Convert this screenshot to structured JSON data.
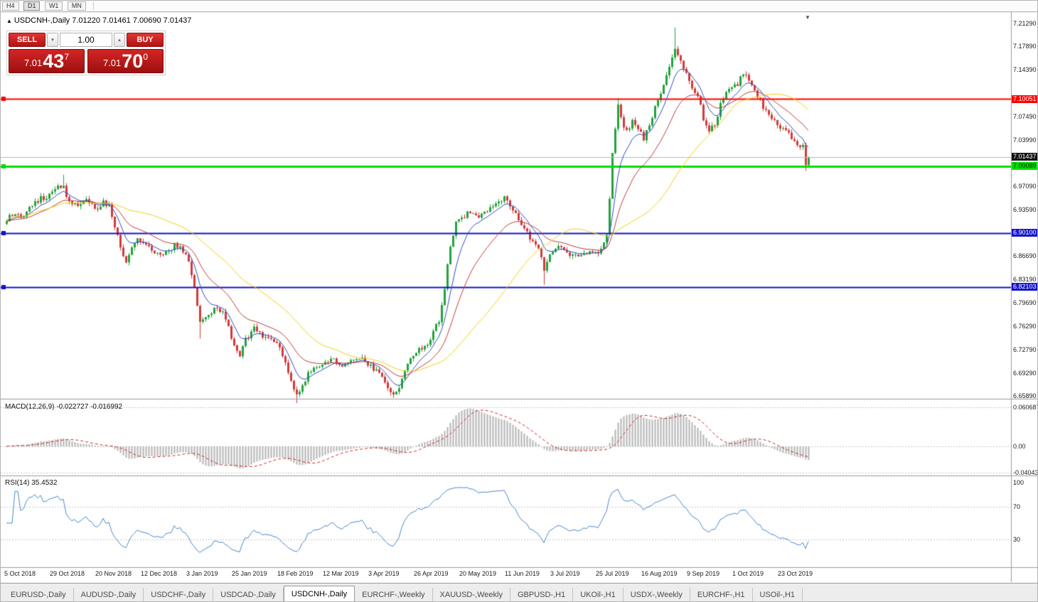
{
  "toolbar": {
    "timeframes": [
      "H4",
      "D1",
      "W1",
      "MN"
    ],
    "active_timeframe": "D1"
  },
  "chart": {
    "title": "USDCNH-,Daily 7.01220 7.01461 7.00690 7.01437",
    "symbol": "USDCNH-,Daily",
    "ohlc": {
      "open": "7.01220",
      "high": "7.01461",
      "low": "7.00690",
      "close": "7.01437"
    }
  },
  "trade_panel": {
    "sell_label": "SELL",
    "buy_label": "BUY",
    "volume": "1.00",
    "spin_down_icon": "▾",
    "spin_up_icon": "▴",
    "bid_prefix": "7.01",
    "bid_big": "43",
    "bid_sup": "7",
    "ask_prefix": "7.01",
    "ask_big": "70",
    "ask_sup": "0"
  },
  "tabs": {
    "active_index": 4,
    "items": [
      "EURUSD-,Daily",
      "AUDUSD-,Daily",
      "USDCHF-,Daily",
      "USDCAD-,Daily",
      "USDCNH-,Daily",
      "EURCHF-,Weekly",
      "XAUUSD-,Weekly",
      "GBPUSD-,H1",
      "UKOil-,H1",
      "USDX-,Weekly",
      "EURCHF-,H1",
      "USOil-,H1"
    ]
  },
  "chart_data": {
    "type": "candlestick",
    "symbol": "USDCNH",
    "timeframe": "Daily",
    "current_price": 7.01437,
    "colors": {
      "up": "#22A23C",
      "down": "#D23A3A",
      "price_line": "#B8B8B8",
      "grid": "#C6C6C6",
      "separator": "#9A9A9A"
    },
    "candles": {
      "count": 283,
      "seed": 20191105,
      "noise": 0.008,
      "wick": 0.005,
      "close_waypoints": [
        [
          0,
          6.92
        ],
        [
          3,
          6.932
        ],
        [
          6,
          6.925
        ],
        [
          9,
          6.945
        ],
        [
          12,
          6.952
        ],
        [
          15,
          6.958
        ],
        [
          18,
          6.972
        ],
        [
          20,
          6.968
        ],
        [
          22,
          6.948
        ],
        [
          25,
          6.94
        ],
        [
          28,
          6.952
        ],
        [
          31,
          6.935
        ],
        [
          34,
          6.948
        ],
        [
          36,
          6.94
        ],
        [
          38,
          6.912
        ],
        [
          40,
          6.88
        ],
        [
          42,
          6.858
        ],
        [
          44,
          6.878
        ],
        [
          46,
          6.892
        ],
        [
          48,
          6.89
        ],
        [
          50,
          6.878
        ],
        [
          53,
          6.868
        ],
        [
          56,
          6.872
        ],
        [
          59,
          6.882
        ],
        [
          62,
          6.876
        ],
        [
          64,
          6.862
        ],
        [
          66,
          6.82
        ],
        [
          68,
          6.768
        ],
        [
          70,
          6.778
        ],
        [
          73,
          6.788
        ],
        [
          76,
          6.782
        ],
        [
          78,
          6.762
        ],
        [
          80,
          6.732
        ],
        [
          82,
          6.716
        ],
        [
          84,
          6.742
        ],
        [
          87,
          6.758
        ],
        [
          90,
          6.748
        ],
        [
          93,
          6.74
        ],
        [
          96,
          6.732
        ],
        [
          98,
          6.706
        ],
        [
          100,
          6.68
        ],
        [
          102,
          6.658
        ],
        [
          104,
          6.672
        ],
        [
          106,
          6.692
        ],
        [
          109,
          6.7
        ],
        [
          112,
          6.706
        ],
        [
          115,
          6.712
        ],
        [
          118,
          6.7
        ],
        [
          121,
          6.712
        ],
        [
          124,
          6.716
        ],
        [
          127,
          6.704
        ],
        [
          130,
          6.698
        ],
        [
          133,
          6.678
        ],
        [
          136,
          6.662
        ],
        [
          138,
          6.672
        ],
        [
          140,
          6.7
        ],
        [
          143,
          6.718
        ],
        [
          146,
          6.73
        ],
        [
          149,
          6.742
        ],
        [
          152,
          6.772
        ],
        [
          154,
          6.82
        ],
        [
          156,
          6.882
        ],
        [
          158,
          6.918
        ],
        [
          160,
          6.924
        ],
        [
          163,
          6.932
        ],
        [
          166,
          6.926
        ],
        [
          169,
          6.936
        ],
        [
          172,
          6.948
        ],
        [
          175,
          6.952
        ],
        [
          178,
          6.938
        ],
        [
          181,
          6.916
        ],
        [
          184,
          6.894
        ],
        [
          187,
          6.876
        ],
        [
          189,
          6.848
        ],
        [
          191,
          6.866
        ],
        [
          194,
          6.88
        ],
        [
          197,
          6.872
        ],
        [
          200,
          6.868
        ],
        [
          203,
          6.874
        ],
        [
          206,
          6.87
        ],
        [
          209,
          6.874
        ],
        [
          211,
          6.902
        ],
        [
          212,
          6.952
        ],
        [
          213,
          7.018
        ],
        [
          214,
          7.056
        ],
        [
          215,
          7.092
        ],
        [
          216,
          7.07
        ],
        [
          218,
          7.052
        ],
        [
          220,
          7.068
        ],
        [
          222,
          7.058
        ],
        [
          224,
          7.042
        ],
        [
          226,
          7.062
        ],
        [
          228,
          7.088
        ],
        [
          230,
          7.108
        ],
        [
          232,
          7.138
        ],
        [
          234,
          7.162
        ],
        [
          235,
          7.178
        ],
        [
          237,
          7.158
        ],
        [
          239,
          7.136
        ],
        [
          241,
          7.118
        ],
        [
          243,
          7.106
        ],
        [
          245,
          7.072
        ],
        [
          247,
          7.052
        ],
        [
          249,
          7.064
        ],
        [
          251,
          7.092
        ],
        [
          253,
          7.108
        ],
        [
          255,
          7.116
        ],
        [
          257,
          7.124
        ],
        [
          259,
          7.138
        ],
        [
          261,
          7.128
        ],
        [
          263,
          7.112
        ],
        [
          265,
          7.098
        ],
        [
          267,
          7.082
        ],
        [
          269,
          7.072
        ],
        [
          271,
          7.062
        ],
        [
          273,
          7.056
        ],
        [
          275,
          7.048
        ],
        [
          277,
          7.036
        ],
        [
          280,
          7.03
        ],
        [
          281,
          7.0
        ],
        [
          282,
          7.01437
        ]
      ],
      "spikes": [
        {
          "i": 20,
          "high": 6.988
        },
        {
          "i": 68,
          "low": 6.744
        },
        {
          "i": 102,
          "low": 6.648
        },
        {
          "i": 189,
          "low": 6.824
        },
        {
          "i": 215,
          "high": 7.102
        },
        {
          "i": 235,
          "high": 7.207
        },
        {
          "i": 281,
          "low": 6.9935
        }
      ]
    },
    "moving_averages": [
      {
        "period": 8,
        "type": "ema",
        "color": "#2F4CC0"
      },
      {
        "period": 21,
        "type": "ema",
        "color": "#C03A3A"
      },
      {
        "period": 45,
        "type": "sma",
        "color": "#F0D017"
      }
    ],
    "hlines": [
      {
        "price": 7.10051,
        "color": "#FF0000",
        "width": 2
      },
      {
        "price": 7.00089,
        "color": "#00DC00",
        "width": 3
      },
      {
        "price": 6.901,
        "color": "#1212CC",
        "width": 2
      },
      {
        "price": 6.82103,
        "color": "#1212CC",
        "width": 2
      }
    ],
    "price_axis": {
      "ticks": [
        "7.21290",
        "7.17890",
        "7.14390",
        "7.07490",
        "7.03990",
        "6.97090",
        "6.93590",
        "6.86690",
        "6.83190",
        "6.79690",
        "6.76290",
        "6.72790",
        "6.69290",
        "6.65890"
      ],
      "markers": [
        {
          "label": "7.10051",
          "value": 7.10051,
          "bg": "#FF0000",
          "fg": "#FFFFFF"
        },
        {
          "label": "7.01437",
          "value": 7.01437,
          "bg": "#111111",
          "fg": "#FFFFFF"
        },
        {
          "label": "7.00089",
          "value": 7.00089,
          "bg": "#00DC00",
          "fg": "#002200"
        },
        {
          "label": "6.90100",
          "value": 6.901,
          "bg": "#1212CC",
          "fg": "#FFFFFF"
        },
        {
          "label": "6.82103",
          "value": 6.82103,
          "bg": "#1212CC",
          "fg": "#FFFFFF"
        }
      ]
    },
    "macd": {
      "label": "MACD(12,26,9) -0.022727 -0.016992",
      "fast": 12,
      "slow": 26,
      "signal": 9,
      "main_value": -0.022727,
      "signal_value": -0.016992,
      "axis": [
        "0.060687",
        "0.00",
        "-0.040431"
      ],
      "hist_color": "#B4B4B4",
      "signal_color": "#CC2A2A"
    },
    "rsi": {
      "label": "RSI(14) 35.4532",
      "period": 14,
      "value": 35.4532,
      "axis": [
        "100",
        "70",
        "30"
      ],
      "levels": [
        70,
        30
      ],
      "color": "#4A86C8"
    },
    "dates": [
      "5 Oct 2018",
      "29 Oct 2018",
      "20 Nov 2018",
      "12 Dec 2018",
      "3 Jan 2019",
      "25 Jan 2019",
      "18 Feb 2019",
      "12 Mar 2019",
      "3 Apr 2019",
      "26 Apr 2019",
      "20 May 2019",
      "11 Jun 2019",
      "3 Jul 2019",
      "25 Jul 2019",
      "16 Aug 2019",
      "9 Sep 2019",
      "1 Oct 2019",
      "23 Oct 2019"
    ],
    "markers": {
      "chart_shift_icon": "▼",
      "scroll_end_icon": "▲"
    }
  }
}
